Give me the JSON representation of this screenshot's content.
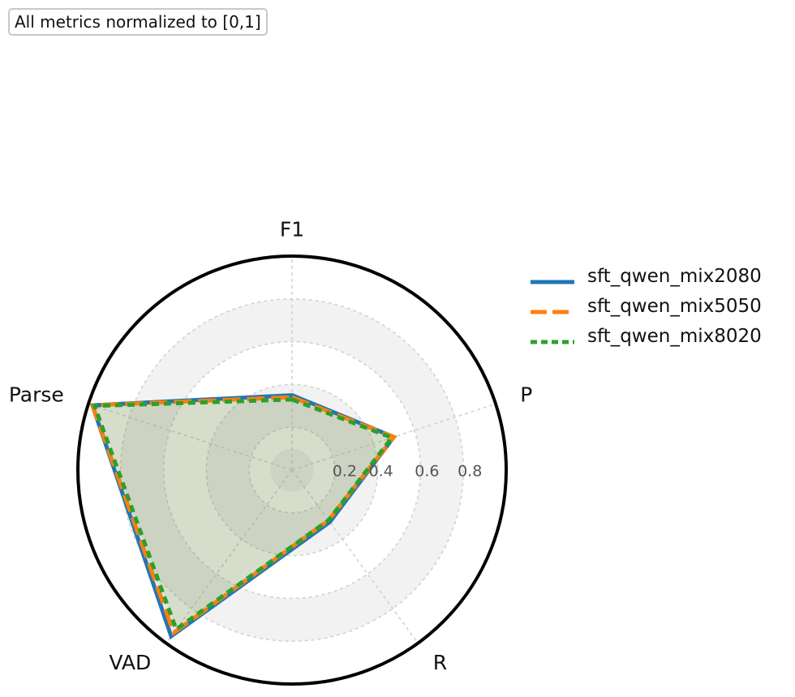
{
  "annotation": "All metrics normalized to [0,1]",
  "chart_data": {
    "type": "radar",
    "axes": [
      "F1",
      "P",
      "R",
      "VAD",
      "Parse"
    ],
    "radial_ticks": [
      "0.2",
      "0.4",
      "0.6",
      "0.8"
    ],
    "radial_tick_values": [
      0.2,
      0.4,
      0.6,
      0.8
    ],
    "rmax": 1.0,
    "grid": true,
    "legend_position": "right",
    "series": [
      {
        "name": "sft_qwen_mix2080",
        "values": [
          0.35,
          0.5,
          0.3,
          0.96,
          0.98
        ],
        "color": "#1f77b4",
        "style": "solid"
      },
      {
        "name": "sft_qwen_mix5050",
        "values": [
          0.34,
          0.5,
          0.29,
          0.94,
          0.98
        ],
        "color": "#ff7f0e",
        "style": "dashed"
      },
      {
        "name": "sft_qwen_mix8020",
        "values": [
          0.33,
          0.49,
          0.29,
          0.92,
          0.97
        ],
        "color": "#2ca02c",
        "style": "dotted"
      }
    ]
  }
}
